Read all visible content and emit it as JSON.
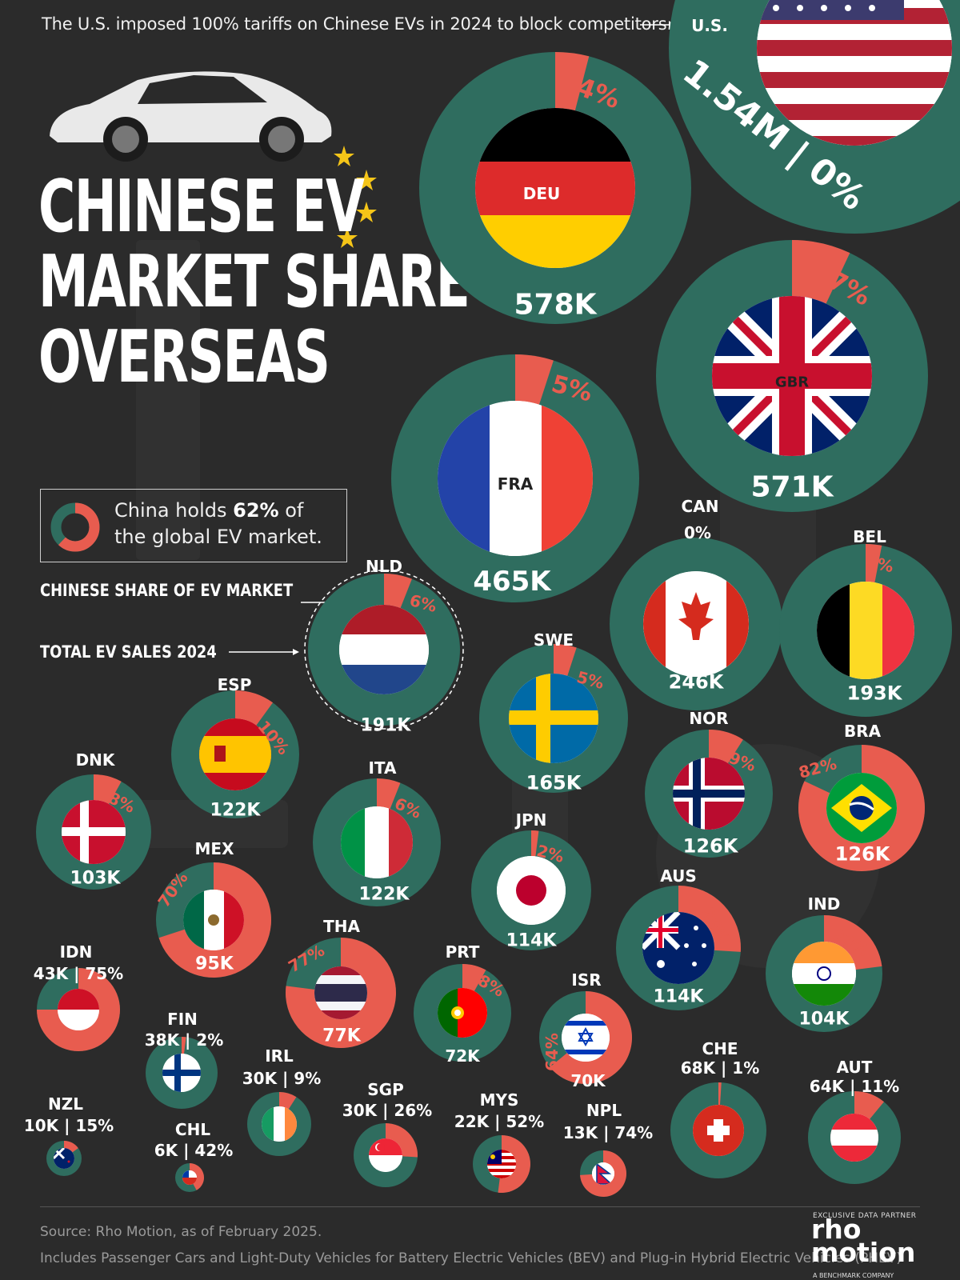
{
  "top_note": "The U.S. imposed 100% tariffs on Chinese EVs in 2024 to block competitors.",
  "title_lines": [
    "CHINESE EV",
    "MARKET SHARE",
    "OVERSEAS"
  ],
  "info_box": {
    "text_before": "China holds ",
    "highlight": "62%",
    "text_mid": " of",
    "text_line2": "the global EV market."
  },
  "legend": {
    "share_label": "CHINESE SHARE OF EV MARKET",
    "sales_label": "TOTAL EV SALES 2024"
  },
  "footer": {
    "source": "Source: Rho Motion, as of February 2025.",
    "note": "Includes Passenger Cars and Light-Duty Vehicles for Battery Electric Vehicles (BEV) and Plug-in Hybrid Electric Vehicles (PHEV)",
    "partner_label": "EXCLUSIVE DATA PARTNER",
    "logo_line1": "rho",
    "logo_line2": "motion",
    "logo_sub": "A BENCHMARK COMPANY"
  },
  "colors": {
    "background": "#2b2b2b",
    "ring_base": "#2f6d5f",
    "china_share": "#e85c4f",
    "text": "#ffffff"
  },
  "chart_data": {
    "type": "donut-bubble",
    "title": "CHINESE EV MARKET SHARE OVERSEAS",
    "value_units": {
      "sales": "total EV sales 2024",
      "share": "Chinese share of EV market (%)"
    },
    "countries": [
      {
        "code": "USA",
        "code_label": "U.S.",
        "sales": 1540000,
        "sales_label": "1.54M | 0%",
        "share": 0,
        "share_label": "0%",
        "flag_icon": "us-flag-icon"
      },
      {
        "code": "DEU",
        "code_label": "DEU",
        "sales": 578000,
        "sales_label": "578K",
        "share": 4,
        "share_label": "4%",
        "flag_icon": "germany-flag-icon"
      },
      {
        "code": "GBR",
        "code_label": "GBR",
        "sales": 571000,
        "sales_label": "571K",
        "share": 7,
        "share_label": "7%",
        "flag_icon": "uk-flag-icon"
      },
      {
        "code": "FRA",
        "code_label": "FRA",
        "sales": 465000,
        "sales_label": "465K",
        "share": 5,
        "share_label": "5%",
        "flag_icon": "france-flag-icon"
      },
      {
        "code": "CAN",
        "code_label": "CAN",
        "sales": 246000,
        "sales_label": "246K",
        "share": 0,
        "share_label": "0%",
        "flag_icon": "canada-flag-icon"
      },
      {
        "code": "BEL",
        "code_label": "BEL",
        "sales": 193000,
        "sales_label": "193K",
        "share": 3,
        "share_label": "3%",
        "flag_icon": "belgium-flag-icon"
      },
      {
        "code": "NLD",
        "code_label": "NLD",
        "sales": 191000,
        "sales_label": "191K",
        "share": 6,
        "share_label": "6%",
        "flag_icon": "netherlands-flag-icon"
      },
      {
        "code": "SWE",
        "code_label": "SWE",
        "sales": 165000,
        "sales_label": "165K",
        "share": 5,
        "share_label": "5%",
        "flag_icon": "sweden-flag-icon"
      },
      {
        "code": "NOR",
        "code_label": "NOR",
        "sales": 126000,
        "sales_label": "126K",
        "share": 9,
        "share_label": "9%",
        "flag_icon": "norway-flag-icon"
      },
      {
        "code": "BRA",
        "code_label": "BRA",
        "sales": 126000,
        "sales_label": "126K",
        "share": 82,
        "share_label": "82%",
        "flag_icon": "brazil-flag-icon"
      },
      {
        "code": "ESP",
        "code_label": "ESP",
        "sales": 122000,
        "sales_label": "122K",
        "share": 10,
        "share_label": "10%",
        "flag_icon": "spain-flag-icon"
      },
      {
        "code": "ITA",
        "code_label": "ITA",
        "sales": 122000,
        "sales_label": "122K",
        "share": 6,
        "share_label": "6%",
        "flag_icon": "italy-flag-icon"
      },
      {
        "code": "JPN",
        "code_label": "JPN",
        "sales": 114000,
        "sales_label": "114K",
        "share": 2,
        "share_label": "2%",
        "flag_icon": "japan-flag-icon"
      },
      {
        "code": "AUS",
        "code_label": "AUS",
        "sales": 114000,
        "sales_label": "114K",
        "share": 26,
        "share_label": "26%",
        "flag_icon": "australia-flag-icon"
      },
      {
        "code": "IND",
        "code_label": "IND",
        "sales": 104000,
        "sales_label": "104K",
        "share": 23,
        "share_label": "23%",
        "flag_icon": "india-flag-icon"
      },
      {
        "code": "DNK",
        "code_label": "DNK",
        "sales": 103000,
        "sales_label": "103K",
        "share": 8,
        "share_label": "8%",
        "flag_icon": "denmark-flag-icon"
      },
      {
        "code": "MEX",
        "code_label": "MEX",
        "sales": 95000,
        "sales_label": "95K",
        "share": 70,
        "share_label": "70%",
        "flag_icon": "mexico-flag-icon"
      },
      {
        "code": "THA",
        "code_label": "THA",
        "sales": 77000,
        "sales_label": "77K",
        "share": 77,
        "share_label": "77%",
        "flag_icon": "thailand-flag-icon"
      },
      {
        "code": "PRT",
        "code_label": "PRT",
        "sales": 72000,
        "sales_label": "72K",
        "share": 8,
        "share_label": "8%",
        "flag_icon": "portugal-flag-icon"
      },
      {
        "code": "ISR",
        "code_label": "ISR",
        "sales": 70000,
        "sales_label": "70K",
        "share": 64,
        "share_label": "64%",
        "flag_icon": "israel-flag-icon"
      },
      {
        "code": "CHE",
        "code_label": "CHE",
        "sales": 68000,
        "sales_label": "68K | 1%",
        "share": 1,
        "share_label": "",
        "flag_icon": "switzerland-flag-icon"
      },
      {
        "code": "AUT",
        "code_label": "AUT",
        "sales": 64000,
        "sales_label": "64K | 11%",
        "share": 11,
        "share_label": "",
        "flag_icon": "austria-flag-icon"
      },
      {
        "code": "IDN",
        "code_label": "IDN",
        "sales": 43000,
        "sales_label": "43K | 75%",
        "share": 75,
        "share_label": "",
        "flag_icon": "indonesia-flag-icon"
      },
      {
        "code": "FIN",
        "code_label": "FIN",
        "sales": 38000,
        "sales_label": "38K | 2%",
        "share": 2,
        "share_label": "",
        "flag_icon": "finland-flag-icon"
      },
      {
        "code": "IRL",
        "code_label": "IRL",
        "sales": 30000,
        "sales_label": "30K | 9%",
        "share": 9,
        "share_label": "",
        "flag_icon": "ireland-flag-icon"
      },
      {
        "code": "SGP",
        "code_label": "SGP",
        "sales": 30000,
        "sales_label": "30K | 26%",
        "share": 26,
        "share_label": "",
        "flag_icon": "singapore-flag-icon"
      },
      {
        "code": "MYS",
        "code_label": "MYS",
        "sales": 22000,
        "sales_label": "22K | 52%",
        "share": 52,
        "share_label": "",
        "flag_icon": "malaysia-flag-icon"
      },
      {
        "code": "NPL",
        "code_label": "NPL",
        "sales": 13000,
        "sales_label": "13K | 74%",
        "share": 74,
        "share_label": "",
        "flag_icon": "nepal-flag-icon"
      },
      {
        "code": "NZL",
        "code_label": "NZL",
        "sales": 10000,
        "sales_label": "10K | 15%",
        "share": 15,
        "share_label": "",
        "flag_icon": "new-zealand-flag-icon"
      },
      {
        "code": "CHL",
        "code_label": "CHL",
        "sales": 6000,
        "sales_label": "6K | 42%",
        "share": 42,
        "share_label": "",
        "flag_icon": "chile-flag-icon"
      }
    ]
  }
}
